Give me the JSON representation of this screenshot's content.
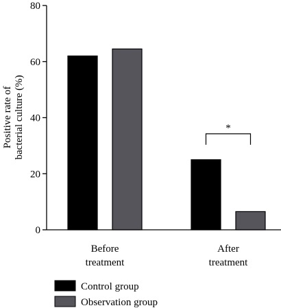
{
  "chart_data": {
    "type": "bar",
    "categories": [
      [
        "Before",
        "treatment"
      ],
      [
        "After",
        "treatment"
      ]
    ],
    "series": [
      {
        "name": "Control group",
        "values": [
          62,
          25
        ],
        "color": "#000000"
      },
      {
        "name": "Observation group",
        "values": [
          64.5,
          6.5
        ],
        "color": "#55555b"
      }
    ],
    "ylabel": [
      "Positive rate of",
      "bacterial culture (%)"
    ],
    "ylim": [
      0,
      80
    ],
    "yticks": [
      0,
      20,
      40,
      60,
      80
    ],
    "grid": false,
    "legend": "bottom-left",
    "annotations": [
      {
        "label": "*",
        "category": 1,
        "between_series": [
          0,
          1
        ]
      }
    ]
  }
}
